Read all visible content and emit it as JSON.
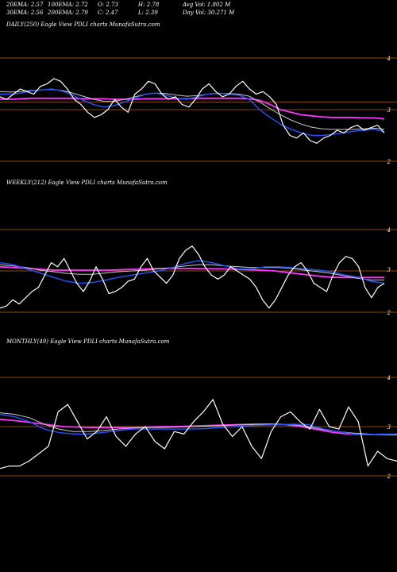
{
  "header": {
    "ema20": "20EMA: 2.57",
    "ema100": "100EMA: 2.72",
    "o": "O: 2.73",
    "h": "H: 2.78",
    "avgvol": "Avg Vol: 1.802  M",
    "ema30": "30EMA: 2.56",
    "ema200": "200EMA: 2.79",
    "c": "C: 2.47",
    "l": "L: 2.39",
    "dayvol": "Day Vol: 30.271  M"
  },
  "colors": {
    "background": "#000000",
    "price": "#ffffff",
    "ema_fast": "#2255ff",
    "ema_mid": "#c8c8c8",
    "ema_slow": "#ff33ff",
    "hline": "#b8601a"
  },
  "chart_data": [
    {
      "type": "line",
      "title": "DAILY(250) Eagle   View  PDLI charts MunafaSutra.com",
      "yticks": [
        "4",
        "3",
        "2"
      ],
      "series": [
        {
          "values": [
            3.25,
            3.2,
            3.3,
            3.4,
            3.35,
            3.3,
            3.45,
            3.5,
            3.6,
            3.55,
            3.4,
            3.2,
            3.1,
            2.95,
            2.85,
            2.9,
            3.0,
            3.2,
            3.05,
            2.95,
            3.3,
            3.4,
            3.55,
            3.5,
            3.3,
            3.2,
            3.25,
            3.1,
            3.05,
            3.2,
            3.4,
            3.5,
            3.35,
            3.25,
            3.3,
            3.45,
            3.55,
            3.4,
            3.3,
            3.35,
            3.25,
            3.1,
            2.7,
            2.5,
            2.45,
            2.55,
            2.4,
            2.35,
            2.45,
            2.5,
            2.6,
            2.55,
            2.65,
            2.7,
            2.6,
            2.65,
            2.7,
            2.55
          ]
        },
        {
          "values": [
            3.3,
            3.3,
            3.32,
            3.36,
            3.38,
            3.4,
            3.36,
            3.28,
            3.18,
            3.1,
            3.05,
            3.08,
            3.15,
            3.22,
            3.3,
            3.32,
            3.28,
            3.22,
            3.2,
            3.25,
            3.3,
            3.32,
            3.3,
            3.28,
            3.2,
            3.0,
            2.85,
            2.72,
            2.62,
            2.55,
            2.5,
            2.5,
            2.52,
            2.55,
            2.58,
            2.6,
            2.62,
            2.57
          ]
        },
        {
          "values": [
            3.35,
            3.34,
            3.35,
            3.37,
            3.38,
            3.39,
            3.37,
            3.32,
            3.26,
            3.2,
            3.16,
            3.16,
            3.2,
            3.25,
            3.3,
            3.32,
            3.31,
            3.28,
            3.26,
            3.27,
            3.3,
            3.31,
            3.31,
            3.3,
            3.26,
            3.15,
            3.02,
            2.9,
            2.8,
            2.72,
            2.66,
            2.63,
            2.62,
            2.62,
            2.62,
            2.63,
            2.64,
            2.62
          ]
        },
        {
          "values": [
            3.2,
            3.2,
            3.21,
            3.22,
            3.22,
            3.22,
            3.22,
            3.22,
            3.21,
            3.21,
            3.21,
            3.2,
            3.2,
            3.2,
            3.21,
            3.21,
            3.21,
            3.21,
            3.21,
            3.22,
            3.22,
            3.22,
            3.22,
            3.22,
            3.21,
            3.18,
            3.1,
            3.0,
            2.95,
            2.9,
            2.88,
            2.86,
            2.85,
            2.85,
            2.85,
            2.84,
            2.84,
            2.82
          ]
        }
      ],
      "hlines": [
        4.0,
        3.15,
        3.0,
        2.0
      ]
    },
    {
      "type": "line",
      "title": "WEEKLY(212) Eagle   View  PDLI charts MunafaSutra.com",
      "yticks": [
        "4",
        "3",
        "2"
      ],
      "series": [
        {
          "values": [
            2.1,
            2.15,
            2.3,
            2.2,
            2.35,
            2.5,
            2.6,
            2.9,
            3.2,
            3.1,
            3.3,
            3.0,
            2.7,
            2.5,
            2.75,
            3.1,
            2.8,
            2.45,
            2.5,
            2.6,
            2.75,
            2.8,
            3.1,
            3.3,
            3.0,
            2.85,
            2.7,
            2.9,
            3.3,
            3.5,
            3.6,
            3.4,
            3.1,
            2.9,
            2.8,
            2.9,
            3.1,
            3.0,
            2.9,
            2.8,
            2.6,
            2.3,
            2.1,
            2.3,
            2.6,
            2.9,
            3.1,
            3.2,
            3.0,
            2.7,
            2.6,
            2.5,
            2.9,
            3.2,
            3.35,
            3.3,
            3.1,
            2.6,
            2.35,
            2.6,
            2.7
          ]
        },
        {
          "values": [
            3.2,
            3.15,
            3.05,
            2.95,
            2.85,
            2.75,
            2.7,
            2.72,
            2.78,
            2.85,
            2.9,
            2.95,
            3.0,
            3.08,
            3.18,
            3.25,
            3.2,
            3.12,
            3.05,
            3.05,
            3.1,
            3.1,
            3.08,
            3.05,
            3.02,
            2.98,
            2.9,
            2.85,
            2.75,
            2.7
          ]
        },
        {
          "values": [
            3.15,
            3.12,
            3.08,
            3.02,
            2.98,
            2.94,
            2.92,
            2.92,
            2.95,
            2.98,
            3.0,
            3.02,
            3.05,
            3.08,
            3.12,
            3.15,
            3.15,
            3.12,
            3.1,
            3.08,
            3.08,
            3.08,
            3.06,
            3.02,
            2.98,
            2.94,
            2.88,
            2.82,
            2.78,
            2.78
          ]
        },
        {
          "values": [
            3.1,
            3.08,
            3.06,
            3.04,
            3.02,
            3.02,
            3.02,
            3.02,
            3.02,
            3.03,
            3.04,
            3.05,
            3.06,
            3.06,
            3.06,
            3.05,
            3.05,
            3.04,
            3.03,
            3.02,
            3.0,
            2.96,
            2.92,
            2.88,
            2.85,
            2.84,
            2.84,
            2.84,
            2.84
          ]
        }
      ],
      "hlines": [
        4.0,
        3.0,
        2.0
      ]
    },
    {
      "type": "line",
      "title": "MONTHLY(49) Eagle   View  PDLI charts MunafaSutra.com",
      "yticks": [
        "4",
        "3",
        "2"
      ],
      "series": [
        {
          "values": [
            2.15,
            2.2,
            2.2,
            2.3,
            2.45,
            2.6,
            3.3,
            3.45,
            3.1,
            2.75,
            2.9,
            3.2,
            2.8,
            2.6,
            2.85,
            3.0,
            2.7,
            2.55,
            2.9,
            2.85,
            3.1,
            3.3,
            3.55,
            3.05,
            2.8,
            3.0,
            2.6,
            2.35,
            2.9,
            3.2,
            3.3,
            3.1,
            2.95,
            3.35,
            3.0,
            2.95,
            3.4,
            3.1,
            2.2,
            2.5,
            2.35,
            2.3
          ]
        },
        {
          "values": [
            3.25,
            3.2,
            3.1,
            2.95,
            2.88,
            2.85,
            2.85,
            2.88,
            2.92,
            2.95,
            2.95,
            2.95,
            2.95,
            2.95,
            2.96,
            2.98,
            3.0,
            3.02,
            3.03,
            3.04,
            3.05,
            3.04,
            2.95,
            2.9,
            2.85,
            2.84,
            2.85,
            2.85
          ]
        },
        {
          "values": [
            3.28,
            3.25,
            3.18,
            3.05,
            2.95,
            2.9,
            2.9,
            2.92,
            2.95,
            2.97,
            2.98,
            2.98,
            2.99,
            3.0,
            3.01,
            3.02,
            3.03,
            3.04,
            3.05,
            3.05,
            3.04,
            3.0,
            2.94,
            2.9,
            2.87,
            2.85,
            2.84,
            2.83
          ]
        },
        {
          "values": [
            3.15,
            3.12,
            3.08,
            3.04,
            3.0,
            2.99,
            2.98,
            2.98,
            2.98,
            2.99,
            3.0,
            3.0,
            3.01,
            3.02,
            3.03,
            3.04,
            3.05,
            3.05,
            3.04,
            3.0,
            2.94,
            2.88,
            2.85,
            2.84,
            2.84,
            2.84
          ]
        }
      ],
      "hlines": [
        4.0,
        3.0,
        2.0
      ]
    }
  ]
}
